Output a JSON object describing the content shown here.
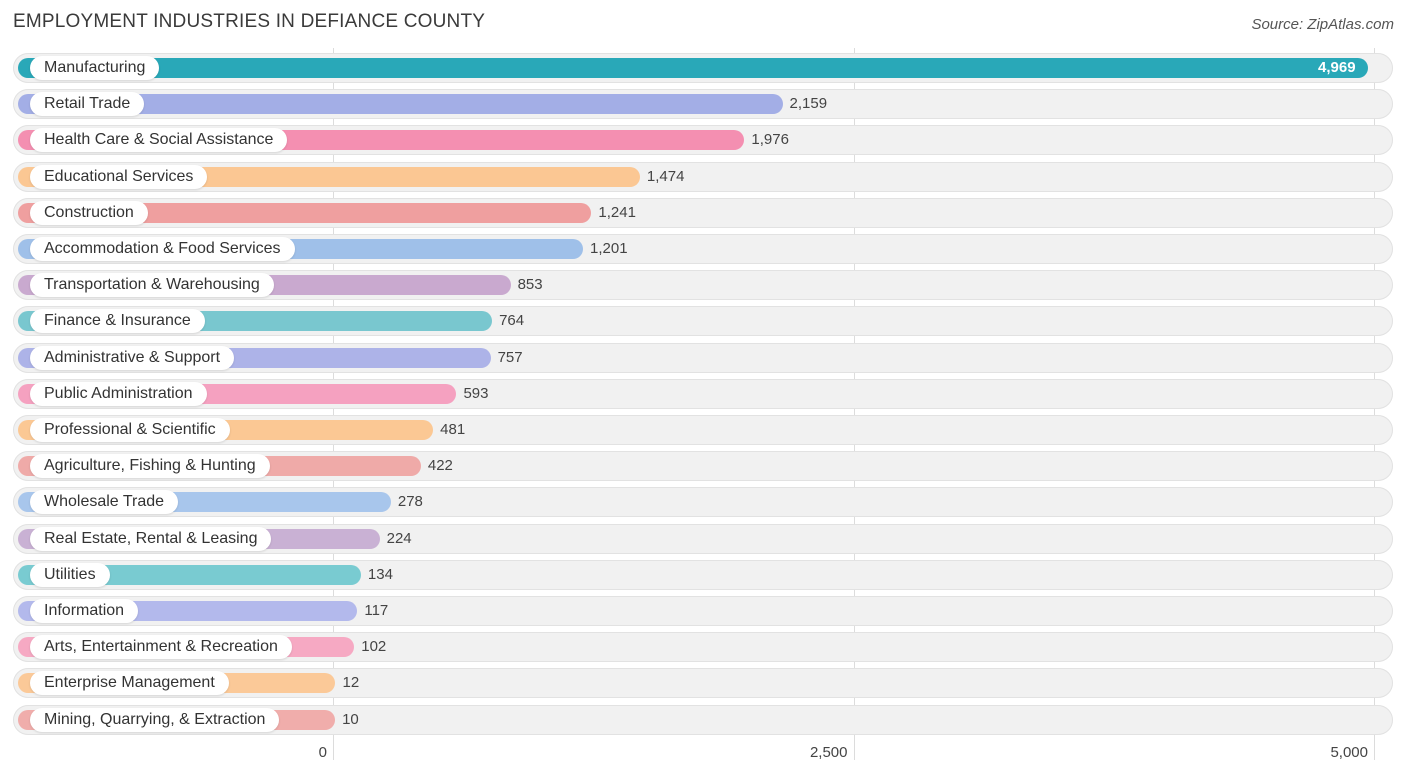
{
  "header": {
    "title": "EMPLOYMENT INDUSTRIES IN DEFIANCE COUNTY",
    "source": "Source: ZipAtlas.com"
  },
  "chart_data": {
    "type": "bar",
    "orientation": "horizontal",
    "title": "EMPLOYMENT INDUSTRIES IN DEFIANCE COUNTY",
    "xlabel": "",
    "ylabel": "",
    "xlim": [
      0,
      5000
    ],
    "ticks": [
      {
        "value": 0,
        "label": "0"
      },
      {
        "value": 2500,
        "label": "2,500"
      },
      {
        "value": 5000,
        "label": "5,000"
      }
    ],
    "categories": [
      "Manufacturing",
      "Retail Trade",
      "Health Care & Social Assistance",
      "Educational Services",
      "Construction",
      "Accommodation & Food Services",
      "Transportation & Warehousing",
      "Finance & Insurance",
      "Administrative & Support",
      "Public Administration",
      "Professional & Scientific",
      "Agriculture, Fishing & Hunting",
      "Wholesale Trade",
      "Real Estate, Rental & Leasing",
      "Utilities",
      "Information",
      "Arts, Entertainment & Recreation",
      "Enterprise Management",
      "Mining, Quarrying, & Extraction"
    ],
    "values": [
      4969,
      2159,
      1976,
      1474,
      1241,
      1201,
      853,
      764,
      757,
      593,
      481,
      422,
      278,
      224,
      134,
      117,
      102,
      12,
      10
    ],
    "value_labels": [
      "4,969",
      "2,159",
      "1,976",
      "1,474",
      "1,241",
      "1,201",
      "853",
      "764",
      "757",
      "593",
      "481",
      "422",
      "278",
      "224",
      "134",
      "117",
      "102",
      "12",
      "10"
    ],
    "colors": [
      "#29a8b8",
      "#a3aee6",
      "#f48fb1",
      "#fbc793",
      "#ef9f9f",
      "#9fc0e9",
      "#c9a9cf",
      "#79c7cf",
      "#adb3e8",
      "#f5a1c0",
      "#fbc894",
      "#efaaa8",
      "#a8c6ec",
      "#c9b1d4",
      "#79cbd1",
      "#b3b9ec",
      "#f6a9c3",
      "#fbc998",
      "#f0adab"
    ]
  }
}
